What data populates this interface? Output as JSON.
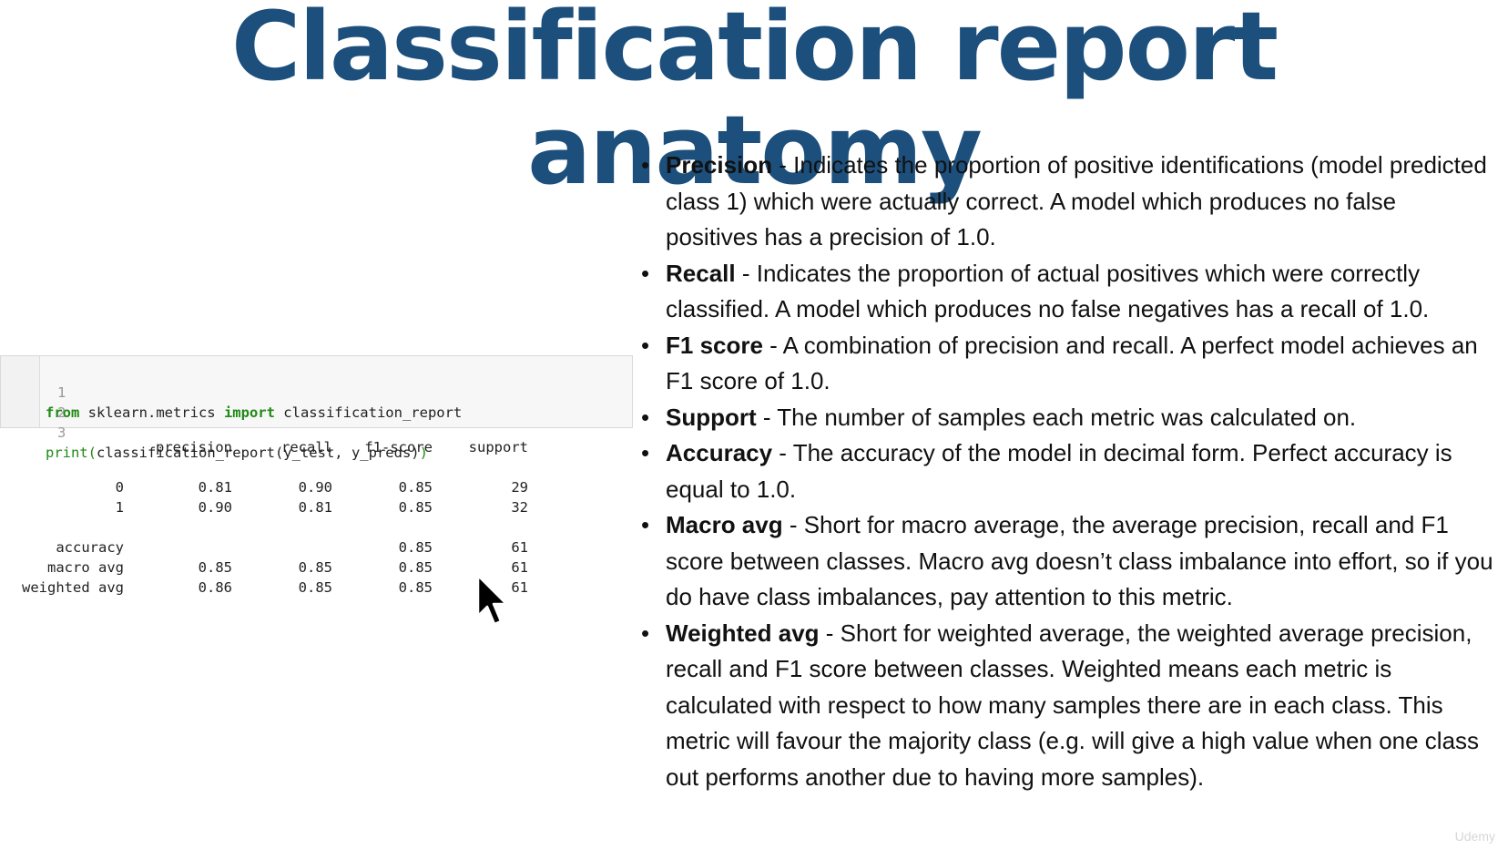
{
  "title": "Classification report anatomy",
  "code": {
    "lines": [
      {
        "num": "1",
        "kw1": "from",
        "mod": " sklearn.metrics ",
        "kw2": "import",
        "name": " classification_report"
      },
      {
        "num": "2"
      },
      {
        "num": "3",
        "fn": "print(",
        "call": "classification_report(y_test, y_preds)",
        "close": ")"
      }
    ]
  },
  "report": {
    "headers": [
      "precision",
      "recall",
      "f1-score",
      "support"
    ],
    "rows": [
      {
        "label": "0",
        "precision": "0.81",
        "recall": "0.90",
        "f1": "0.85",
        "support": "29"
      },
      {
        "label": "1",
        "precision": "0.90",
        "recall": "0.81",
        "f1": "0.85",
        "support": "32"
      },
      {
        "label": "accuracy",
        "precision": "",
        "recall": "",
        "f1": "0.85",
        "support": "61"
      },
      {
        "label": "macro avg",
        "precision": "0.85",
        "recall": "0.85",
        "f1": "0.85",
        "support": "61"
      },
      {
        "label": "weighted avg",
        "precision": "0.86",
        "recall": "0.85",
        "f1": "0.85",
        "support": "61"
      }
    ]
  },
  "bullet_glyph": "•",
  "bullets": [
    {
      "term": "Precision",
      "text": " - Indicates the proportion of positive identifications (model predicted class 1) which were actually correct. A model which produces no false positives has a precision of 1.0."
    },
    {
      "term": "Recall",
      "text": " - Indicates the proportion of actual positives which were correctly classified. A model which produces no false negatives has a recall of 1.0."
    },
    {
      "term": "F1 score",
      "text": " - A combination of precision and recall. A perfect model achieves an F1 score of 1.0."
    },
    {
      "term": "Support",
      "text": " - The number of samples each metric was calculated on."
    },
    {
      "term": "Accuracy",
      "text": " - The accuracy of the model in decimal form. Perfect accuracy is equal to 1.0."
    },
    {
      "term": "Macro avg",
      "text": " - Short for macro average, the average precision, recall and F1 score between classes. Macro avg doesn’t class imbalance into effort, so if you do have class imbalances, pay attention to this metric."
    },
    {
      "term": "Weighted avg",
      "text": " - Short for weighted average, the weighted average precision, recall and F1 score between classes. Weighted means each metric is calculated with respect to how many samples there are in each class. This metric will favour the majority class (e.g. will give a high value when one class out performs another due to having more samples)."
    }
  ],
  "watermark": "Udemy",
  "icons": {
    "cursor": "mouse-pointer-icon"
  }
}
